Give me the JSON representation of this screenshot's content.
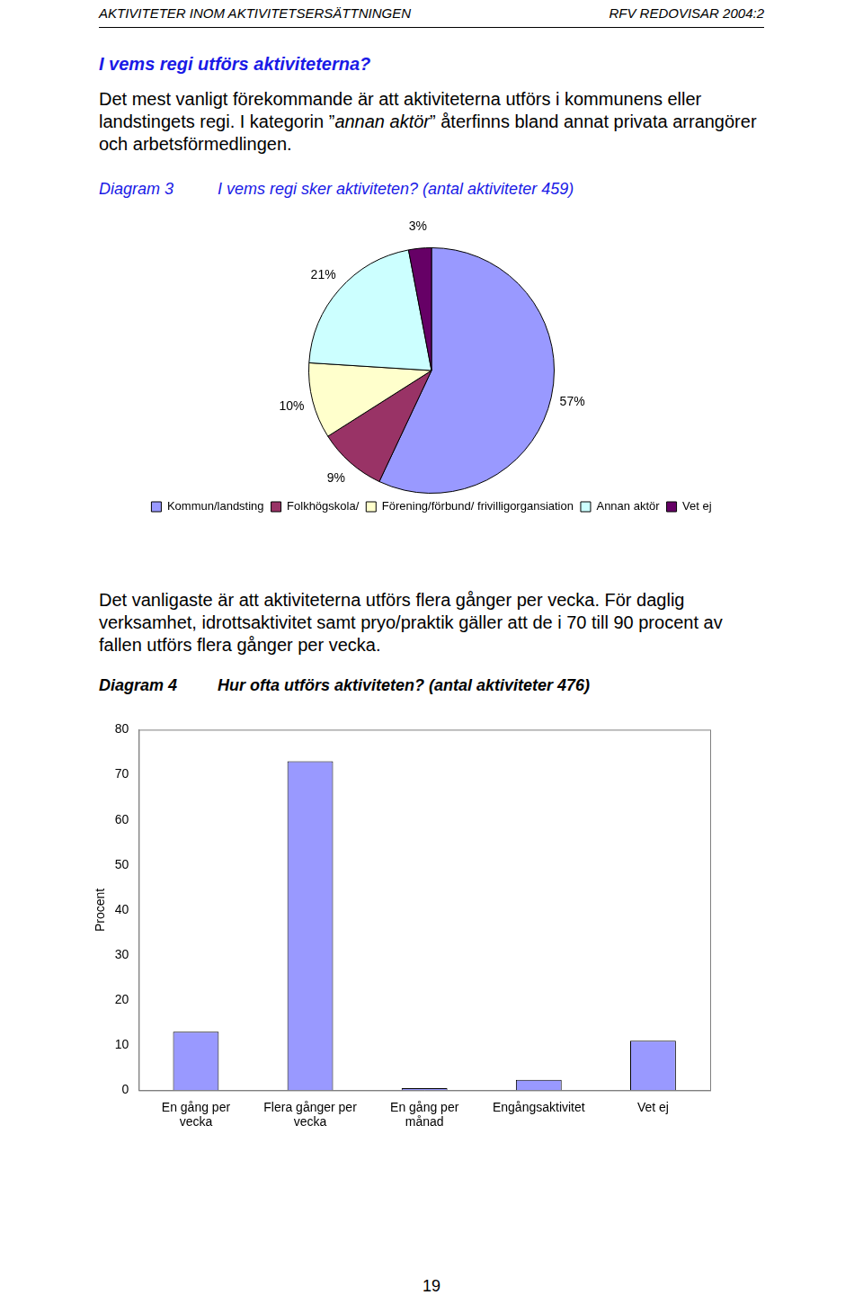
{
  "header": {
    "left": "AKTIVITETER INOM AKTIVITETSERSÄTTNINGEN",
    "right": "RFV REDOVISAR 2004:2"
  },
  "heading": "I vems regi utförs aktiviteterna?",
  "paragraphs": [
    [
      {
        "text": "Det mest vanligt förekommande är att aktiviteterna utförs i kommunens eller landstingets regi. I kategorin ”"
      },
      {
        "text": "annan aktör",
        "italic": true
      },
      {
        "text": "” återfinns bland annat privata arrangörer och arbetsförmedlingen."
      }
    ],
    [
      {
        "text": "Det vanligaste är att aktiviteterna utförs flera gånger per vecka. För daglig verksamhet, idrottsaktivitet samt pryo/praktik gäller att de i 70 till 90 procent av fallen utförs flera gånger per vecka."
      }
    ]
  ],
  "chart_data": [
    {
      "type": "pie",
      "number": "Diagram 3",
      "title": "I vems regi sker aktiviteten? (antal aktiviteter 459)",
      "categories": [
        "Kommun/landsting",
        "Folkhögskola/",
        "Förening/förbund/ frivilligorgansiation",
        "Annan aktör",
        "Vet ej"
      ],
      "values": [
        57,
        9,
        10,
        21,
        3
      ],
      "value_labels": [
        "57%",
        "9%",
        "10%",
        "21%",
        "3%"
      ],
      "colors": [
        "#9999ff",
        "#993366",
        "#ffffcc",
        "#ccffff",
        "#660066"
      ],
      "data_labels": true,
      "legend": "bottom"
    },
    {
      "type": "bar",
      "number": "Diagram 4",
      "title": "Hur ofta utförs aktiviteten? (antal aktiviteter 476)",
      "categories": [
        "En gång per vecka",
        "Flera gånger per vecka",
        "En gång per månad",
        "Engångsaktivitet",
        "Vet ej"
      ],
      "values": [
        13,
        73,
        0.5,
        2.3,
        11
      ],
      "color": "#9999ff",
      "y_label": "Procent",
      "ylim": [
        0,
        80
      ],
      "yticks": [
        0,
        10,
        20,
        30,
        40,
        50,
        60,
        70,
        80
      ],
      "grid": false
    }
  ],
  "page_number": "19"
}
